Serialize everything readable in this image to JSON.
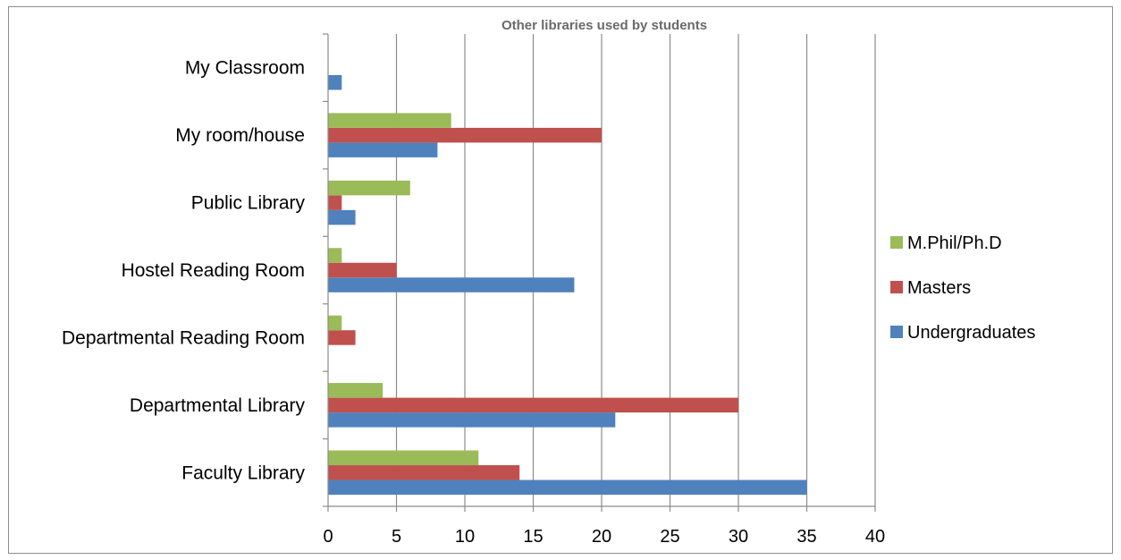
{
  "chart_data": {
    "type": "bar",
    "orientation": "horizontal",
    "title": "Other libraries used by students",
    "xlabel": "",
    "ylabel": "",
    "xlim": [
      0,
      40
    ],
    "x_ticks": [
      0,
      5,
      10,
      15,
      20,
      25,
      30,
      35,
      40
    ],
    "grid": "vertical",
    "legend_position": "right",
    "categories": [
      "Faculty Library",
      "Departmental Library",
      "Departmental Reading Room",
      "Hostel Reading Room",
      "Public Library",
      "My room/house",
      "My Classroom"
    ],
    "series": [
      {
        "name": "Undergraduates",
        "color": "#4f81bd",
        "values": [
          35,
          21,
          0,
          18,
          2,
          8,
          1
        ]
      },
      {
        "name": "Masters",
        "color": "#c0504d",
        "values": [
          14,
          30,
          2,
          5,
          1,
          20,
          0
        ]
      },
      {
        "name": "M.Phil/Ph.D",
        "color": "#9bbb59",
        "values": [
          11,
          4,
          1,
          1,
          6,
          9,
          0
        ]
      }
    ]
  }
}
